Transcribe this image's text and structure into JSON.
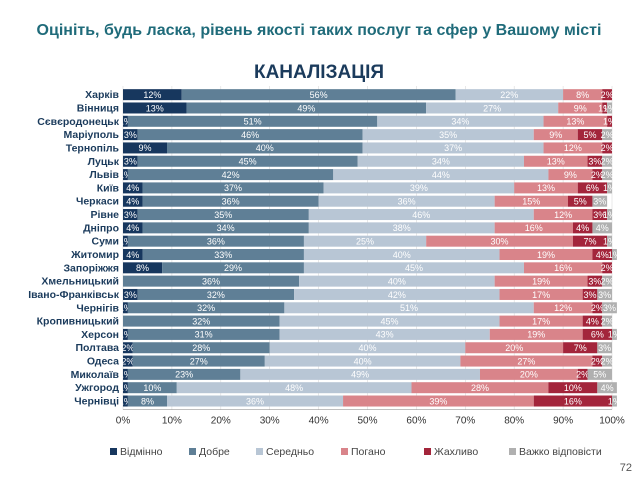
{
  "slide": {
    "question": "Оцініть, будь ласка, рівень якості таких послуг та сфер у Вашому місті",
    "section_title": "КАНАЛІЗАЦІЯ",
    "page_number": "72"
  },
  "chart_data": {
    "type": "bar",
    "orientation": "horizontal",
    "stacked": true,
    "percent": true,
    "xlim": [
      0,
      100
    ],
    "xticks": [
      "0%",
      "10%",
      "20%",
      "30%",
      "40%",
      "50%",
      "60%",
      "70%",
      "80%",
      "90%",
      "100%"
    ],
    "legend_position": "bottom",
    "categories": [
      "Харків",
      "Вінниця",
      "Сєвєродонецьк",
      "Маріуполь",
      "Тернопіль",
      "Луцьк",
      "Львів",
      "Київ",
      "Черкаси",
      "Рівне",
      "Дніпро",
      "Суми",
      "Житомир",
      "Запоріжжя",
      "Хмельницький",
      "Івано-Франківськ",
      "Чернігів",
      "Кропивницький",
      "Херсон",
      "Полтава",
      "Одеса",
      "Миколаїв",
      "Ужгород",
      "Чернівці"
    ],
    "series": [
      {
        "name": "Відмінно",
        "color": "#17375e",
        "label_color": "#ffffff",
        "values": [
          12,
          13,
          1,
          3,
          9,
          3,
          1,
          4,
          4,
          3,
          4,
          1,
          4,
          8,
          0,
          3,
          1,
          0,
          1,
          2,
          2,
          1,
          1,
          1
        ],
        "labels": [
          "12%",
          "13%",
          "1%",
          "3%",
          "9%",
          "3%",
          "1%",
          "4%",
          "4%",
          "3%",
          "4%",
          "1%",
          "4%",
          "8%",
          "",
          "3%",
          "1%",
          "",
          "1%",
          "2%",
          "2%",
          "1%",
          "1%",
          "1%"
        ]
      },
      {
        "name": "Добре",
        "color": "#5f7f96",
        "label_color": "#ffffff",
        "values": [
          56,
          49,
          51,
          46,
          40,
          45,
          42,
          37,
          36,
          35,
          34,
          36,
          33,
          29,
          36,
          32,
          32,
          32,
          31,
          28,
          27,
          23,
          10,
          8
        ],
        "labels": [
          "56%",
          "49%",
          "51%",
          "46%",
          "40%",
          "45%",
          "42%",
          "37%",
          "36%",
          "35%",
          "34%",
          "36%",
          "33%",
          "29%",
          "36%",
          "32%",
          "32%",
          "32%",
          "31%",
          "28%",
          "27%",
          "23%",
          "10%",
          "8%"
        ]
      },
      {
        "name": "Середньо",
        "color": "#b8c6d5",
        "label_color": "#ffffff",
        "values": [
          22,
          27,
          34,
          35,
          37,
          34,
          44,
          39,
          36,
          46,
          38,
          25,
          40,
          45,
          40,
          42,
          51,
          45,
          43,
          40,
          40,
          49,
          48,
          36
        ],
        "labels": [
          "22%",
          "27%",
          "34%",
          "35%",
          "37%",
          "34%",
          "44%",
          "39%",
          "36%",
          "46%",
          "38%",
          "25%",
          "40%",
          "45%",
          "40%",
          "42%",
          "51%",
          "45%",
          "43%",
          "40%",
          "40%",
          "49%",
          "48%",
          "36%"
        ]
      },
      {
        "name": "Погано",
        "color": "#d9848a",
        "label_color": "#ffffff",
        "values": [
          8,
          9,
          13,
          9,
          12,
          13,
          9,
          13,
          15,
          12,
          16,
          30,
          19,
          16,
          19,
          17,
          12,
          17,
          19,
          20,
          27,
          20,
          28,
          39
        ],
        "labels": [
          "8%",
          "9%",
          "13%",
          "9%",
          "12%",
          "13%",
          "9%",
          "13%",
          "15%",
          "12%",
          "16%",
          "30%",
          "19%",
          "16%",
          "19%",
          "17%",
          "12%",
          "17%",
          "19%",
          "20%",
          "27%",
          "20%",
          "28%",
          "39%"
        ]
      },
      {
        "name": "Жахливо",
        "color": "#a3253b",
        "label_color": "#ffffff",
        "values": [
          2,
          1,
          1,
          5,
          2,
          3,
          2,
          6,
          5,
          3,
          4,
          7,
          4,
          2,
          3,
          3,
          2,
          4,
          6,
          7,
          2,
          2,
          10,
          16
        ],
        "labels": [
          "2%",
          "1%",
          "1%",
          "5%",
          "2%",
          "3%",
          "2%",
          "6%",
          "5%",
          "3%",
          "4%",
          "7%",
          "4%",
          "2%",
          "3%",
          "3%",
          "2%",
          "4%",
          "6%",
          "7%",
          "2%",
          "2%",
          "10%",
          "16%"
        ]
      },
      {
        "name": "Важко відповісти",
        "color": "#b0b0b0",
        "label_color": "#ffffff",
        "values": [
          0,
          1,
          0,
          2,
          0,
          2,
          2,
          1,
          3,
          1,
          4,
          1,
          1,
          0,
          2,
          3,
          3,
          2,
          1,
          3,
          2,
          5,
          4,
          1
        ],
        "labels": [
          "",
          "1%",
          "",
          "2%",
          "",
          "2%",
          "2%",
          "1%",
          "3%",
          "1%",
          "4%",
          "1%",
          "1%",
          "",
          "2%",
          "3%",
          "3%",
          "2%",
          "1%",
          "3%",
          "2%",
          "5%",
          "4%",
          "1%"
        ]
      }
    ]
  }
}
